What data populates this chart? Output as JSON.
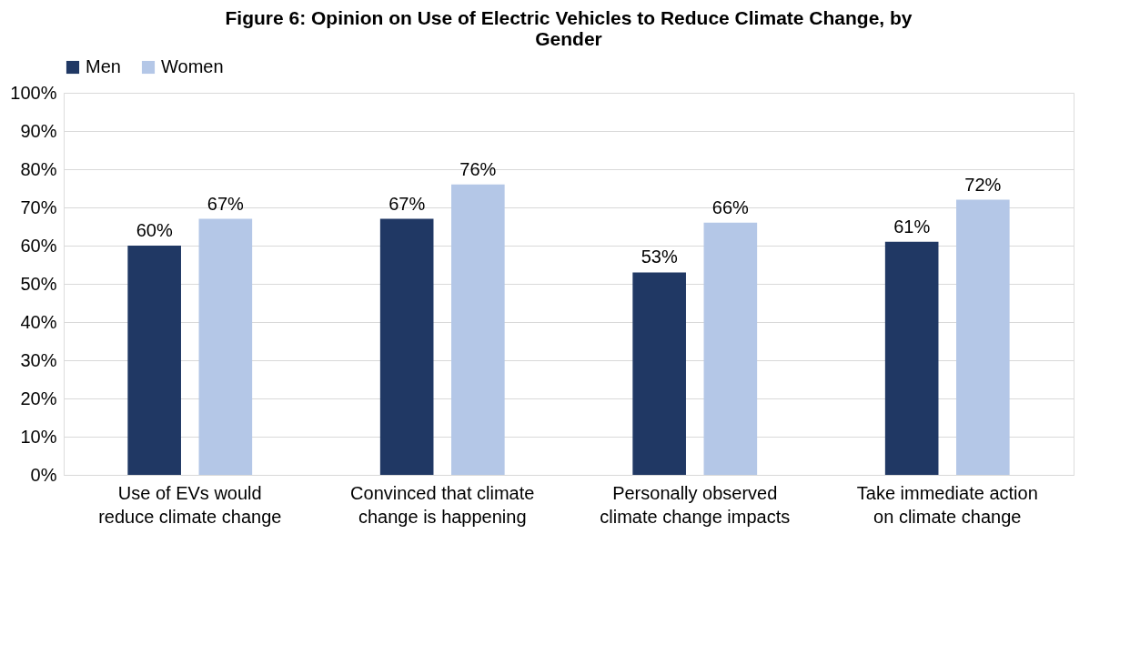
{
  "chart_data": {
    "type": "bar",
    "title": "Figure 6: Opinion on Use of Electric Vehicles to Reduce Climate Change, by Gender",
    "categories": [
      "Use of EVs would reduce climate change",
      "Convinced that climate change is happening",
      "Personally observed climate change impacts",
      "Take immediate action on climate change"
    ],
    "series": [
      {
        "name": "Men",
        "color": "#203864",
        "values": [
          60,
          67,
          53,
          61
        ],
        "value_labels": [
          "60%",
          "67%",
          "53%",
          "61%"
        ]
      },
      {
        "name": "Women",
        "color": "#b4c7e7",
        "values": [
          67,
          76,
          66,
          72
        ],
        "value_labels": [
          "67%",
          "76%",
          "66%",
          "72%"
        ]
      }
    ],
    "ylim": [
      0,
      100
    ],
    "yticks": [
      {
        "value": 0,
        "label": "0%"
      },
      {
        "value": 10,
        "label": "10%"
      },
      {
        "value": 20,
        "label": "20%"
      },
      {
        "value": 30,
        "label": "30%"
      },
      {
        "value": 40,
        "label": "40%"
      },
      {
        "value": 50,
        "label": "50%"
      },
      {
        "value": 60,
        "label": "60%"
      },
      {
        "value": 70,
        "label": "70%"
      },
      {
        "value": 80,
        "label": "80%"
      },
      {
        "value": 90,
        "label": "90%"
      },
      {
        "value": 100,
        "label": "100%"
      }
    ],
    "grid": "y",
    "legend": "top"
  }
}
